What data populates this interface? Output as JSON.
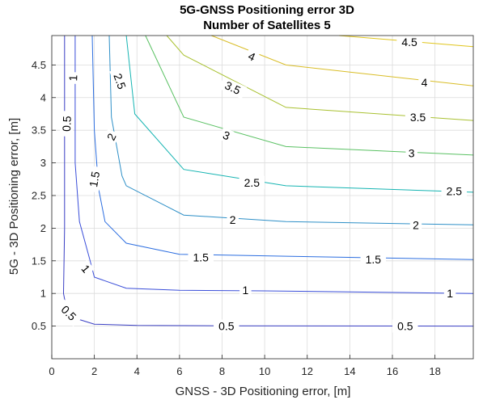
{
  "chart_data": {
    "type": "contour",
    "title": "5G-GNSS Positioning error 3D",
    "subtitle": "Number of Satellites 5",
    "xlabel": "GNSS - 3D Positioning error, [m]",
    "ylabel": "5G - 3D Positioning error, [m]",
    "xlim": [
      0,
      19.8
    ],
    "ylim": [
      0,
      4.95
    ],
    "xticks": [
      0,
      2,
      4,
      6,
      8,
      10,
      12,
      14,
      16,
      18
    ],
    "yticks": [
      0.5,
      1,
      1.5,
      2,
      2.5,
      3,
      3.5,
      4,
      4.5
    ],
    "xtick_labels": [
      "0",
      "2",
      "4",
      "6",
      "8",
      "10",
      "12",
      "14",
      "16",
      "18"
    ],
    "ytick_labels": [
      "0.5",
      "1",
      "1.5",
      "2",
      "2.5",
      "3",
      "3.5",
      "4",
      "4.5"
    ],
    "grid": true,
    "colormap": "parula",
    "levels": [
      {
        "level": 0.5,
        "label": "0.5",
        "color": "#3a3fc4",
        "points": [
          [
            0.6,
            4.95
          ],
          [
            0.6,
            2.0
          ],
          [
            0.55,
            1.0
          ],
          [
            0.7,
            0.75
          ],
          [
            1.3,
            0.6
          ],
          [
            2.0,
            0.53
          ],
          [
            4.0,
            0.51
          ],
          [
            8.0,
            0.505
          ],
          [
            19.8,
            0.5
          ]
        ],
        "labels": [
          {
            "x": 0.7,
            "y": 3.6,
            "rot": -88
          },
          {
            "x": 0.8,
            "y": 0.7,
            "rot": 45
          },
          {
            "x": 8.2,
            "y": 0.5,
            "rot": 0
          },
          {
            "x": 16.6,
            "y": 0.5,
            "rot": 0
          }
        ]
      },
      {
        "level": 1,
        "label": "1",
        "color": "#3a4ed9",
        "points": [
          [
            1.1,
            4.95
          ],
          [
            1.1,
            3.0
          ],
          [
            1.3,
            2.1
          ],
          [
            1.8,
            1.5
          ],
          [
            2.0,
            1.25
          ],
          [
            3.5,
            1.08
          ],
          [
            6.0,
            1.05
          ],
          [
            10.0,
            1.04
          ],
          [
            19.8,
            1.0
          ]
        ],
        "labels": [
          {
            "x": 1.0,
            "y": 4.3,
            "rot": -88
          },
          {
            "x": 1.6,
            "y": 1.38,
            "rot": 50
          },
          {
            "x": 9.1,
            "y": 1.05,
            "rot": 0
          },
          {
            "x": 18.7,
            "y": 1.0,
            "rot": 0
          }
        ]
      },
      {
        "level": 1.5,
        "label": "1.5",
        "color": "#2c6ee0",
        "points": [
          [
            1.9,
            4.95
          ],
          [
            2.0,
            3.5
          ],
          [
            2.2,
            2.6
          ],
          [
            2.5,
            2.1
          ],
          [
            3.5,
            1.77
          ],
          [
            6.0,
            1.6
          ],
          [
            11.0,
            1.57
          ],
          [
            19.8,
            1.52
          ]
        ],
        "labels": [
          {
            "x": 2.0,
            "y": 2.75,
            "rot": -80
          },
          {
            "x": 7.0,
            "y": 1.55,
            "rot": 0
          },
          {
            "x": 15.1,
            "y": 1.52,
            "rot": 0
          }
        ]
      },
      {
        "level": 2,
        "label": "2",
        "color": "#2d8fc7",
        "points": [
          [
            2.7,
            4.95
          ],
          [
            2.8,
            3.7
          ],
          [
            3.3,
            2.8
          ],
          [
            3.5,
            2.65
          ],
          [
            6.2,
            2.2
          ],
          [
            11.0,
            2.1
          ],
          [
            19.8,
            2.05
          ]
        ],
        "labels": [
          {
            "x": 2.8,
            "y": 3.4,
            "rot": -65
          },
          {
            "x": 8.5,
            "y": 2.13,
            "rot": 0
          },
          {
            "x": 17.1,
            "y": 2.05,
            "rot": 0
          }
        ]
      },
      {
        "level": 2.5,
        "label": "2.5",
        "color": "#15b4b2",
        "points": [
          [
            3.5,
            4.95
          ],
          [
            3.9,
            3.75
          ],
          [
            6.2,
            2.9
          ],
          [
            11.0,
            2.65
          ],
          [
            19.8,
            2.55
          ]
        ],
        "labels": [
          {
            "x": 3.2,
            "y": 4.25,
            "rot": 70
          },
          {
            "x": 9.4,
            "y": 2.7,
            "rot": 0
          },
          {
            "x": 18.9,
            "y": 2.57,
            "rot": 0
          }
        ]
      },
      {
        "level": 3,
        "label": "3",
        "color": "#5ac163",
        "points": [
          [
            4.4,
            4.95
          ],
          [
            6.2,
            3.7
          ],
          [
            11.0,
            3.25
          ],
          [
            19.8,
            3.12
          ]
        ],
        "labels": [
          {
            "x": 8.2,
            "y": 3.42,
            "rot": 22
          },
          {
            "x": 16.9,
            "y": 3.15,
            "rot": 0
          }
        ]
      },
      {
        "level": 3.5,
        "label": "3.5",
        "color": "#a9c131",
        "points": [
          [
            5.4,
            4.95
          ],
          [
            6.2,
            4.65
          ],
          [
            11.0,
            3.85
          ],
          [
            19.8,
            3.65
          ]
        ],
        "labels": [
          {
            "x": 8.5,
            "y": 4.15,
            "rot": 25
          },
          {
            "x": 17.2,
            "y": 3.7,
            "rot": 0
          }
        ]
      },
      {
        "level": 4,
        "label": "4",
        "color": "#d9bd26",
        "points": [
          [
            7.5,
            4.95
          ],
          [
            11.0,
            4.5
          ],
          [
            19.8,
            4.18
          ]
        ],
        "labels": [
          {
            "x": 9.4,
            "y": 4.63,
            "rot": 25
          },
          {
            "x": 17.5,
            "y": 4.23,
            "rot": 0
          }
        ]
      },
      {
        "level": 4.5,
        "label": "4.5",
        "color": "#e0c51b",
        "points": [
          [
            13.5,
            4.95
          ],
          [
            19.8,
            4.78
          ]
        ],
        "labels": [
          {
            "x": 16.8,
            "y": 4.85,
            "rot": 0
          }
        ]
      }
    ]
  }
}
